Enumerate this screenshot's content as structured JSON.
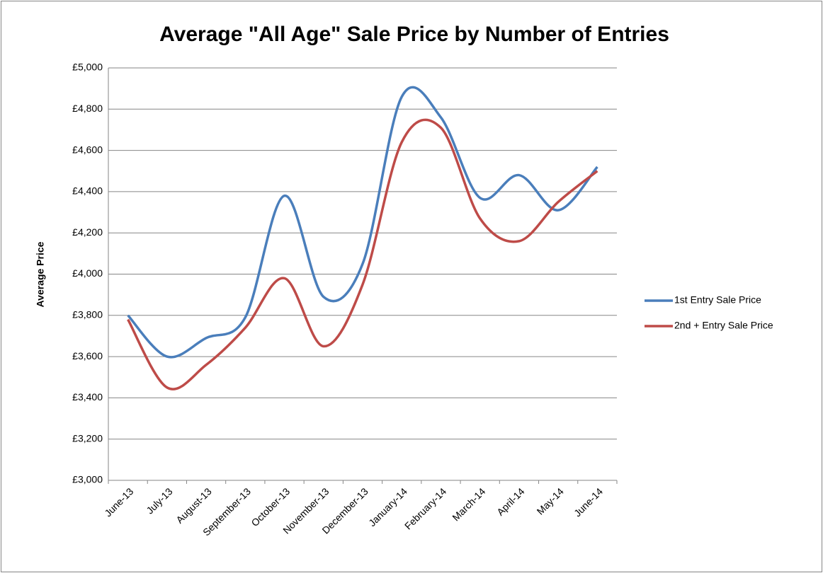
{
  "chart_data": {
    "type": "line",
    "title": "Average \"All Age\" Sale Price by Number of Entries",
    "y_label": "Average Price",
    "categories": [
      "June-13",
      "July-13",
      "August-13",
      "September-13",
      "October-13",
      "November-13",
      "December-13",
      "January-14",
      "February-14",
      "March-14",
      "April-14",
      "May-14",
      "June-14"
    ],
    "series": [
      {
        "name": "1st Entry Sale Price",
        "color": "#4a7ebb",
        "values": [
          3800,
          3600,
          3690,
          3790,
          4380,
          3890,
          4050,
          4860,
          4760,
          4370,
          4480,
          4310,
          4520
        ]
      },
      {
        "name": "2nd + Entry Sale Price",
        "color": "#be4b48",
        "values": [
          3780,
          3450,
          3560,
          3740,
          3980,
          3650,
          3950,
          4640,
          4710,
          4270,
          4160,
          4350,
          4500
        ]
      }
    ],
    "ylim": [
      3000,
      5000
    ],
    "yticks": [
      {
        "value": 3000,
        "label": "£3,000"
      },
      {
        "value": 3200,
        "label": "£3,200"
      },
      {
        "value": 3400,
        "label": "£3,400"
      },
      {
        "value": 3600,
        "label": "£3,600"
      },
      {
        "value": 3800,
        "label": "£3,800"
      },
      {
        "value": 4000,
        "label": "£4,000"
      },
      {
        "value": 4200,
        "label": "£4,200"
      },
      {
        "value": 4400,
        "label": "£4,400"
      },
      {
        "value": 4600,
        "label": "£4,600"
      },
      {
        "value": 4800,
        "label": "£4,800"
      },
      {
        "value": 5000,
        "label": "£5,000"
      }
    ],
    "grid": true,
    "smooth": true,
    "legend": "right"
  }
}
